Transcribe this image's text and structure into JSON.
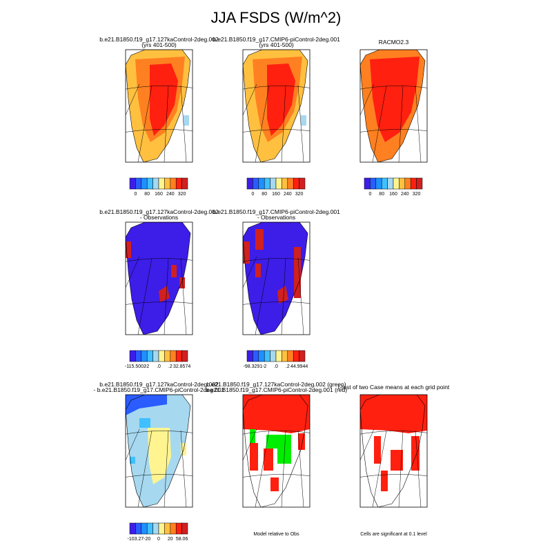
{
  "title": "JJA FSDS (W/m^2)",
  "palette": [
    "#3d1de8",
    "#2a5cff",
    "#1e90ff",
    "#40c0ff",
    "#a6d8f0",
    "#fff490",
    "#ffc040",
    "#ff8020",
    "#ff2010",
    "#d02020"
  ],
  "panels": [
    {
      "title_lines": [
        "b.e21.B1850.f19_g17.127kaControl-2deg.002",
        "(yrs 401-500)"
      ],
      "colorbar_labels": [
        "0",
        "80",
        "160",
        "240",
        "320"
      ]
    },
    {
      "title_lines": [
        "b.e21.B1850.f19_g17.CMIP6-piControl-2deg.001",
        "(yrs 401-500)"
      ],
      "colorbar_labels": [
        "0",
        "80",
        "160",
        "240",
        "320"
      ]
    },
    {
      "title_lines": [
        "RACMO2.3"
      ],
      "colorbar_labels": [
        "0",
        "80",
        "160",
        "240",
        "320"
      ]
    },
    {
      "title_lines": [
        "b.e21.B1850.f19_g17.127kaControl-2deg.002",
        "- Observations"
      ],
      "colorbar_labels": [
        "-115.5002",
        "-2",
        ".0",
        ".2",
        "32.8574"
      ]
    },
    {
      "title_lines": [
        "b.e21.B1850.f19_g17.CMIP6-piControl-2deg.001",
        "- Observations"
      ],
      "colorbar_labels": [
        "-98.3291",
        "-2",
        ".0",
        ".2",
        "44.9944"
      ]
    },
    {
      "title_lines": [
        "b.e21.B1850.f19_g17.127kaControl-2deg.002",
        "- b.e21.B1850.f19_g17.CMIP6-piControl-2deg.001"
      ],
      "colorbar_labels": [
        "-103.27",
        "-20",
        "0",
        "20",
        "58.06"
      ]
    },
    {
      "title_lines": [
        "b.e21.B1850.f19_g17.127kaControl-2deg.002 (green)",
        "b.e21.B1850.f19_g17.CMIP6-piControl-2deg.001 (red)"
      ],
      "note": "Model relative to Obs"
    },
    {
      "title_lines": [
        "t-test of two Case means at each grid point"
      ],
      "note": "Cells are significant at 0.1 level"
    }
  ]
}
